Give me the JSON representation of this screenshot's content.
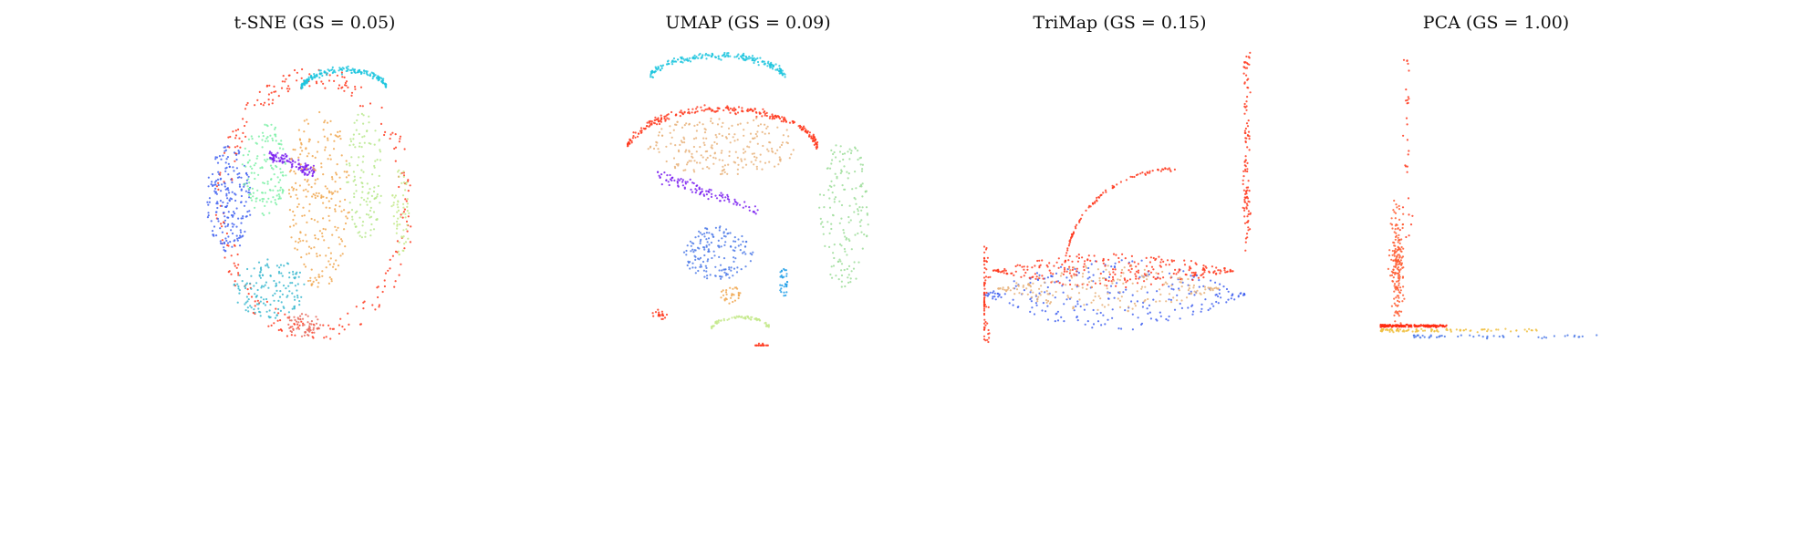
{
  "chart_data": [
    {
      "type": "scatter",
      "title": "t-SNE (GS = 0.05)",
      "xlabel": "",
      "ylabel": "",
      "axes_visible": false,
      "grid": false,
      "legend": "none",
      "colormap": "rainbow",
      "point_size": "small",
      "clusters": [
        {
          "shape": "ring-outer",
          "cx": 0.5,
          "cy": 0.52,
          "rx": 0.44,
          "ry": 0.46,
          "color": "#ff3a1f",
          "n": 260
        },
        {
          "shape": "arc",
          "cx": 0.63,
          "cy": 0.11,
          "rx": 0.2,
          "ry": 0.05,
          "color": "#1fc6de",
          "n": 180
        },
        {
          "shape": "blob",
          "cx": 0.12,
          "cy": 0.5,
          "rx": 0.1,
          "ry": 0.18,
          "color": "#4363f0",
          "n": 200
        },
        {
          "shape": "blob",
          "cx": 0.28,
          "cy": 0.4,
          "rx": 0.1,
          "ry": 0.16,
          "color": "#7df0a6",
          "n": 140
        },
        {
          "shape": "streak",
          "cx": 0.4,
          "cy": 0.38,
          "rx": 0.1,
          "ry": 0.03,
          "color": "#7a1ff0",
          "n": 110
        },
        {
          "shape": "blob",
          "cx": 0.52,
          "cy": 0.5,
          "rx": 0.14,
          "ry": 0.3,
          "color": "#f0a750",
          "n": 240
        },
        {
          "shape": "blob",
          "cx": 0.72,
          "cy": 0.42,
          "rx": 0.08,
          "ry": 0.22,
          "color": "#b7e88c",
          "n": 120
        },
        {
          "shape": "blob",
          "cx": 0.88,
          "cy": 0.55,
          "rx": 0.04,
          "ry": 0.15,
          "color": "#c4e98c",
          "n": 60
        },
        {
          "shape": "blob",
          "cx": 0.3,
          "cy": 0.8,
          "rx": 0.16,
          "ry": 0.1,
          "color": "#3bb8cf",
          "n": 150
        },
        {
          "shape": "blob",
          "cx": 0.45,
          "cy": 0.92,
          "rx": 0.08,
          "ry": 0.04,
          "color": "#e8685a",
          "n": 60
        }
      ]
    },
    {
      "type": "scatter",
      "title": "UMAP (GS = 0.09)",
      "xlabel": "",
      "ylabel": "",
      "axes_visible": false,
      "grid": false,
      "legend": "none",
      "colormap": "rainbow",
      "point_size": "small",
      "clusters": [
        {
          "shape": "arc",
          "cx": 0.38,
          "cy": 0.07,
          "rx": 0.28,
          "ry": 0.06,
          "color": "#1fc6de",
          "n": 200
        },
        {
          "shape": "arc-red",
          "cx": 0.4,
          "cy": 0.35,
          "rx": 0.38,
          "ry": 0.1,
          "color": "#ff3a1f",
          "n": 260
        },
        {
          "shape": "blob",
          "cx": 0.4,
          "cy": 0.32,
          "rx": 0.3,
          "ry": 0.1,
          "color": "#e7b27a",
          "n": 220
        },
        {
          "shape": "streak",
          "cx": 0.34,
          "cy": 0.48,
          "rx": 0.2,
          "ry": 0.03,
          "color": "#7a1ff0",
          "n": 100
        },
        {
          "shape": "blob",
          "cx": 0.38,
          "cy": 0.68,
          "rx": 0.14,
          "ry": 0.09,
          "color": "#4d7ae8",
          "n": 160
        },
        {
          "shape": "blob",
          "cx": 0.88,
          "cy": 0.55,
          "rx": 0.1,
          "ry": 0.25,
          "color": "#9edd9a",
          "n": 160
        },
        {
          "shape": "arc",
          "cx": 0.47,
          "cy": 0.92,
          "rx": 0.12,
          "ry": 0.03,
          "color": "#c4e98c",
          "n": 70
        },
        {
          "shape": "blob",
          "cx": 0.64,
          "cy": 0.78,
          "rx": 0.02,
          "ry": 0.05,
          "color": "#1f9ee8",
          "n": 30
        },
        {
          "shape": "blob",
          "cx": 0.43,
          "cy": 0.82,
          "rx": 0.04,
          "ry": 0.03,
          "color": "#f0a750",
          "n": 30
        },
        {
          "shape": "blob",
          "cx": 0.15,
          "cy": 0.89,
          "rx": 0.03,
          "ry": 0.02,
          "color": "#ff3a1f",
          "n": 20
        },
        {
          "shape": "blob",
          "cx": 0.55,
          "cy": 1.0,
          "rx": 0.03,
          "ry": 0.02,
          "color": "#ff3a1f",
          "n": 20
        }
      ]
    },
    {
      "type": "scatter",
      "title": "TriMap (GS = 0.15)",
      "xlabel": "",
      "ylabel": "",
      "axes_visible": false,
      "grid": false,
      "legend": "none",
      "colormap": "rainbow",
      "point_size": "small",
      "clusters": [
        {
          "shape": "leaf",
          "cx": 0.48,
          "cy": 0.82,
          "rx": 0.48,
          "ry": 0.12,
          "color": "#4363f0",
          "n": 260
        },
        {
          "shape": "leaf",
          "cx": 0.48,
          "cy": 0.74,
          "rx": 0.44,
          "ry": 0.06,
          "color": "#ff3a1f",
          "n": 260
        },
        {
          "shape": "leaf",
          "cx": 0.46,
          "cy": 0.8,
          "rx": 0.4,
          "ry": 0.08,
          "color": "#e7b27a",
          "n": 200
        },
        {
          "shape": "arc-sparse",
          "cx": 0.7,
          "cy": 0.4,
          "rx": 0.4,
          "ry": 0.35,
          "color": "#ff3a1f",
          "n": 90
        },
        {
          "shape": "vline",
          "cx": 0.96,
          "cy": 0.35,
          "rx": 0.02,
          "ry": 0.34,
          "color": "#ff3a1f",
          "n": 110
        },
        {
          "shape": "vline",
          "cx": 0.01,
          "cy": 0.82,
          "rx": 0.03,
          "ry": 0.16,
          "color": "#ff3a1f",
          "n": 70
        }
      ]
    },
    {
      "type": "scatter",
      "title": "PCA (GS = 1.00)",
      "xlabel": "",
      "ylabel": "",
      "axes_visible": false,
      "grid": false,
      "legend": "none",
      "colormap": "rainbow",
      "point_size": "small",
      "clusters": [
        {
          "shape": "vspread",
          "cx": 0.08,
          "cy": 0.72,
          "rx": 0.04,
          "ry": 0.22,
          "color": "#ff5a2f",
          "n": 180
        },
        {
          "shape": "vline-sparse",
          "cx": 0.12,
          "cy": 0.35,
          "rx": 0.03,
          "ry": 0.32,
          "color": "#ff3a1f",
          "n": 30
        },
        {
          "shape": "hline",
          "cx": 0.15,
          "cy": 0.925,
          "rx": 0.14,
          "ry": 0.006,
          "color": "#ff2a10",
          "n": 220
        },
        {
          "shape": "hline",
          "cx": 0.35,
          "cy": 0.94,
          "rx": 0.34,
          "ry": 0.008,
          "color": "#f0c040",
          "n": 90
        },
        {
          "shape": "hline",
          "cx": 0.55,
          "cy": 0.96,
          "rx": 0.4,
          "ry": 0.01,
          "color": "#4d7ae8",
          "n": 50
        }
      ]
    }
  ]
}
